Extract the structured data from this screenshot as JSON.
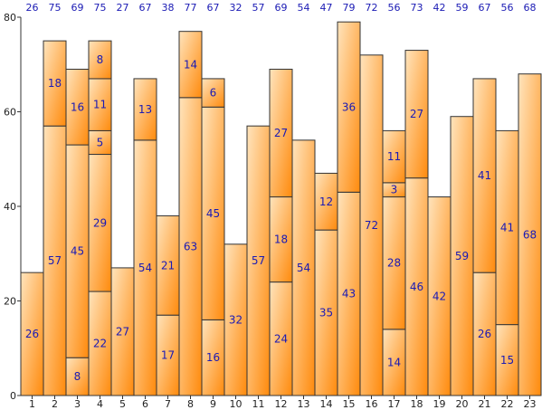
{
  "chart_data": {
    "type": "bar",
    "stacked": true,
    "categories": [
      "1",
      "2",
      "3",
      "4",
      "5",
      "6",
      "7",
      "8",
      "9",
      "10",
      "11",
      "12",
      "13",
      "14",
      "15",
      "16",
      "17",
      "18",
      "19",
      "20",
      "21",
      "22",
      "23"
    ],
    "stacks": [
      [
        26
      ],
      [
        57,
        18
      ],
      [
        8,
        45,
        16
      ],
      [
        22,
        29,
        5,
        11,
        8
      ],
      [
        27
      ],
      [
        54,
        13
      ],
      [
        17,
        21
      ],
      [
        63,
        14
      ],
      [
        16,
        45,
        6
      ],
      [
        32
      ],
      [
        57
      ],
      [
        24,
        18,
        27
      ],
      [
        54
      ],
      [
        35,
        12
      ],
      [
        43,
        36
      ],
      [
        72
      ],
      [
        14,
        28,
        3,
        11
      ],
      [
        46,
        27
      ],
      [
        42
      ],
      [
        59
      ],
      [
        26,
        41
      ],
      [
        15,
        41
      ],
      [
        68
      ]
    ],
    "totals": [
      26,
      75,
      69,
      75,
      27,
      67,
      38,
      77,
      67,
      32,
      57,
      69,
      54,
      47,
      79,
      72,
      56,
      73,
      42,
      59,
      67,
      56,
      68
    ],
    "ylim": [
      0,
      80
    ],
    "yticks": [
      0,
      20,
      40,
      60,
      80
    ],
    "colors": {
      "bar_light": "#ffe2b8",
      "bar_dark": "#ff8c0f",
      "outline": "#333333",
      "label": "#1a1ab4"
    },
    "grid": false,
    "legend": "none"
  }
}
